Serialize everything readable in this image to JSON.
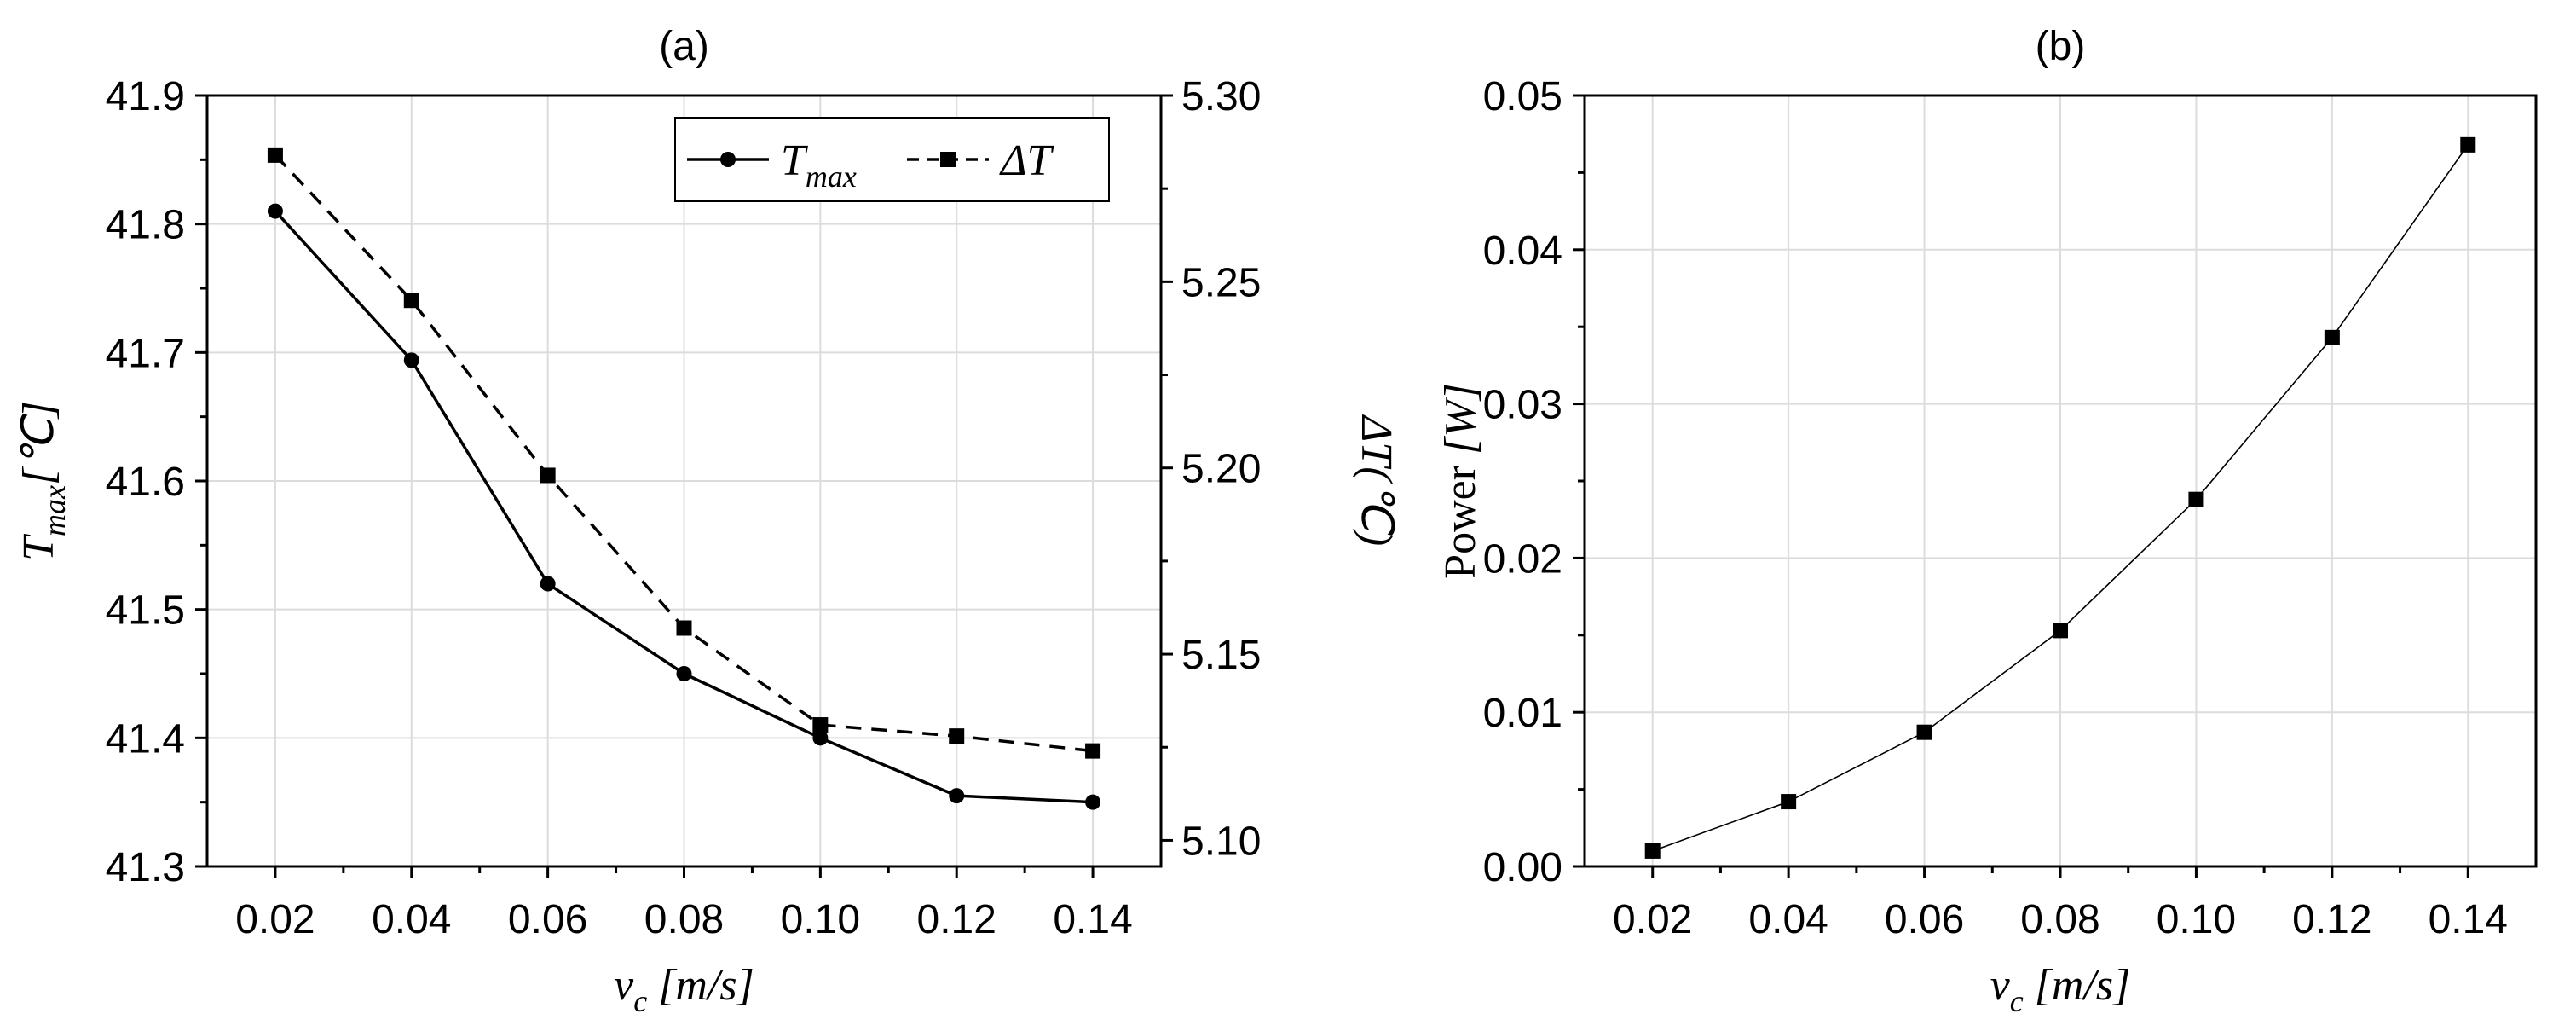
{
  "chart_data": [
    {
      "type": "line",
      "title": "(a)",
      "xlabel": {
        "var": "v",
        "sub": "c",
        "unit": "[m/s]"
      },
      "ylabel_left": {
        "var": "T",
        "sub": "max",
        "unit": "[℃]"
      },
      "ylabel_right": {
        "var": "ΔT",
        "unit": "(℃)"
      },
      "x": [
        0.02,
        0.04,
        0.06,
        0.08,
        0.1,
        0.12,
        0.14
      ],
      "x_ticks": [
        "0.02",
        "0.04",
        "0.06",
        "0.08",
        "0.10",
        "0.12",
        "0.14"
      ],
      "xlim": [
        0.01,
        0.15
      ],
      "ylim_left": [
        41.3,
        41.9
      ],
      "yticks_left": [
        "41.3",
        "41.4",
        "41.5",
        "41.6",
        "41.7",
        "41.8",
        "41.9"
      ],
      "ylim_right": [
        5.093,
        5.3
      ],
      "yticks_right": [
        "5.10",
        "5.15",
        "5.20",
        "5.25",
        "5.30"
      ],
      "grid": true,
      "legend_position": "top-right",
      "series": [
        {
          "legend": {
            "var": "T",
            "sub": "max"
          },
          "axis": "left",
          "style": "solid",
          "marker": "circle",
          "values": [
            41.81,
            41.694,
            41.52,
            41.45,
            41.4,
            41.355,
            41.35
          ]
        },
        {
          "legend": {
            "var": "ΔT",
            "sub": ""
          },
          "axis": "right",
          "style": "dashed",
          "marker": "square",
          "values": [
            5.284,
            5.245,
            5.198,
            5.157,
            5.131,
            5.128,
            5.124
          ]
        }
      ]
    },
    {
      "type": "line",
      "title": "(b)",
      "xlabel": {
        "var": "v",
        "sub": "c",
        "unit": "[m/s]"
      },
      "ylabel_left": {
        "prefix": "Power ",
        "unit": "[W]"
      },
      "x": [
        0.02,
        0.04,
        0.06,
        0.08,
        0.1,
        0.12,
        0.14
      ],
      "x_ticks": [
        "0.02",
        "0.04",
        "0.06",
        "0.08",
        "0.10",
        "0.12",
        "0.14"
      ],
      "xlim": [
        0.01,
        0.15
      ],
      "ylim_left": [
        0,
        0.05
      ],
      "yticks_left": [
        "0.00",
        "0.01",
        "0.02",
        "0.03",
        "0.04",
        "0.05"
      ],
      "grid": true,
      "series": [
        {
          "axis": "left",
          "style": "solid-thin",
          "marker": "square",
          "values": [
            0.001,
            0.0042,
            0.0087,
            0.0153,
            0.0238,
            0.0343,
            0.0468
          ]
        }
      ]
    }
  ]
}
